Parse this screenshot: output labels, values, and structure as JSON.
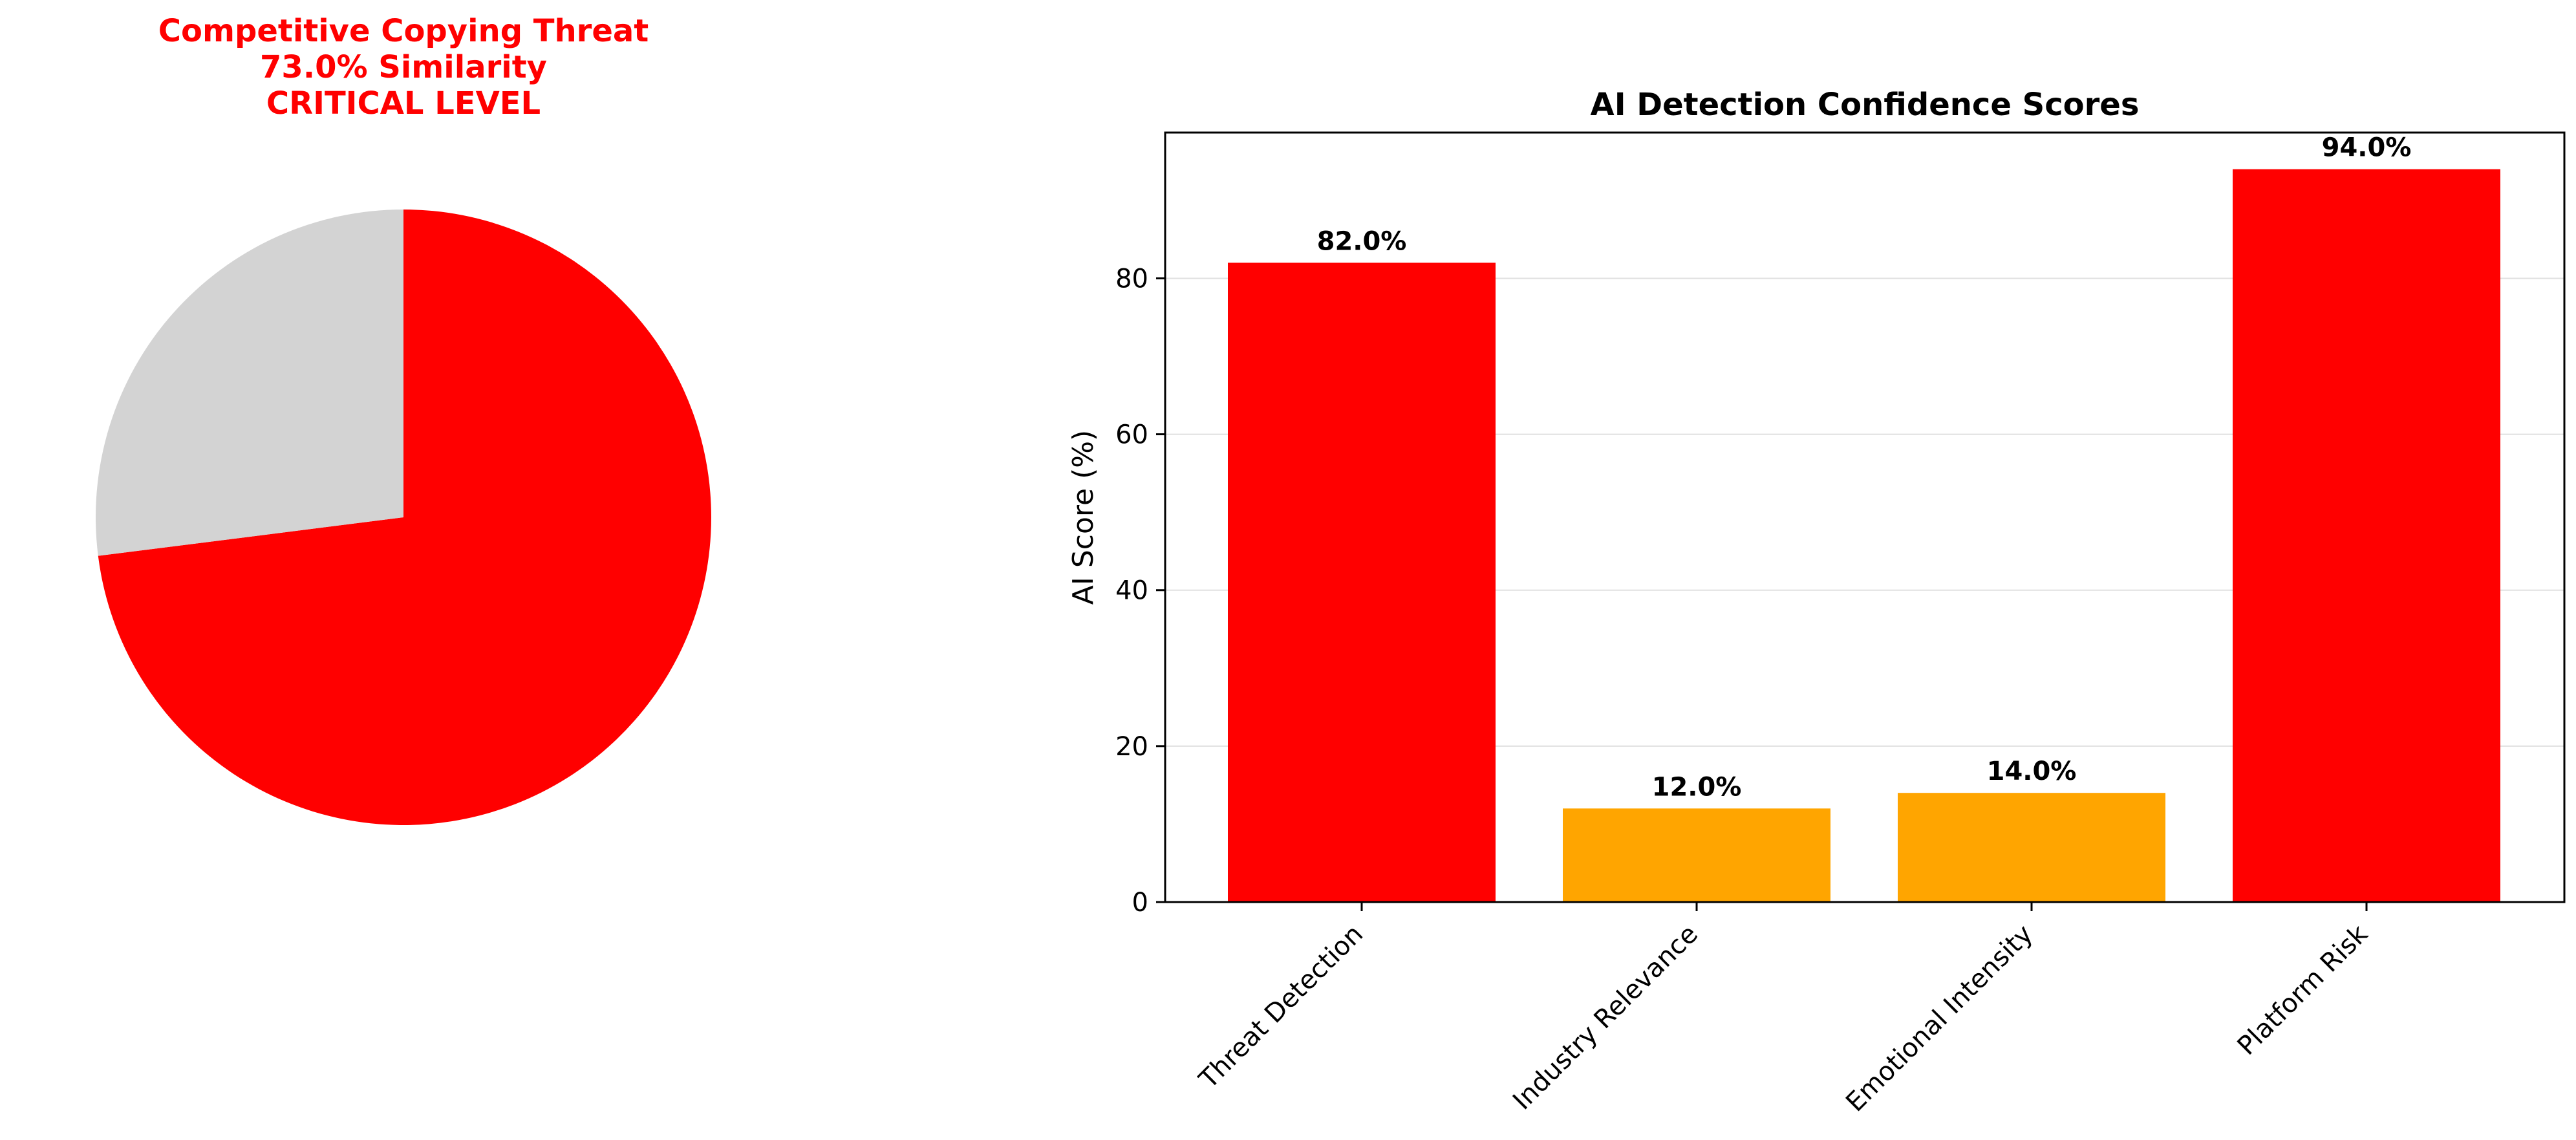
{
  "chart_data": [
    {
      "type": "pie",
      "title_lines": [
        "Competitive Copying Threat",
        "73.0% Similarity",
        "CRITICAL LEVEL"
      ],
      "title_color": "#ff0000",
      "slices": [
        {
          "value": 73.0,
          "color": "#ff0000"
        },
        {
          "value": 27.0,
          "color": "#d3d3d3"
        }
      ]
    },
    {
      "type": "bar",
      "title": "AI Detection Confidence Scores",
      "xlabel": "",
      "ylabel": "AI Score (%)",
      "categories": [
        "Threat Detection",
        "Industry Relevance",
        "Emotional Intensity",
        "Platform Risk"
      ],
      "values": [
        82.0,
        12.0,
        14.0,
        94.0
      ],
      "value_labels": [
        "82.0%",
        "12.0%",
        "14.0%",
        "94.0%"
      ],
      "colors": [
        "#ff0000",
        "#ffa500",
        "#ffa500",
        "#ff0000"
      ],
      "ylim": [
        0,
        98.7
      ],
      "yticks": [
        0,
        20,
        40,
        60,
        80
      ],
      "grid": "y"
    }
  ]
}
